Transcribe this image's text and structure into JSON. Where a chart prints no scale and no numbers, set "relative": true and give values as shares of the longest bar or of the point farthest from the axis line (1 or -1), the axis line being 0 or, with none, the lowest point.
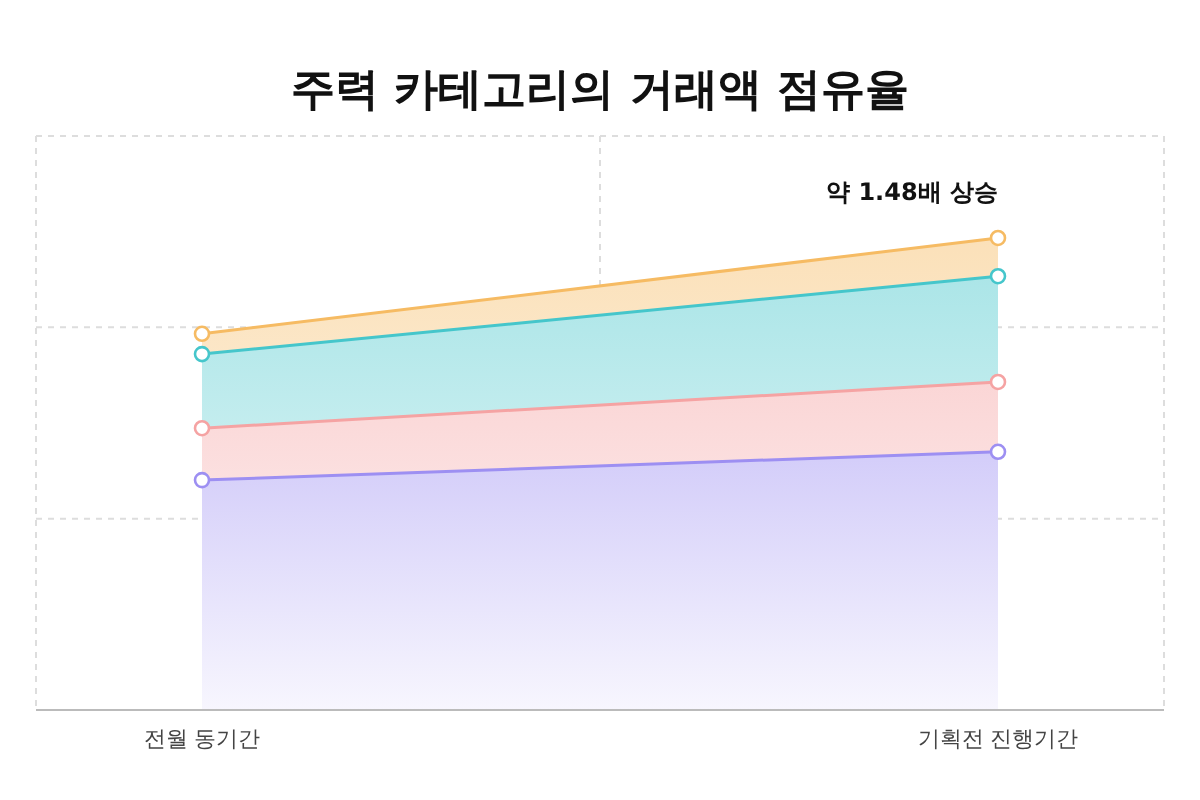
{
  "chart_data": {
    "type": "area",
    "title": "주력 카테고리의 거래액 점유율",
    "categories": [
      "전월 동기간",
      "기획전 진행기간"
    ],
    "relative": true,
    "grid": true,
    "marker": "circle",
    "line_style": "solid",
    "annotations": [
      "약 1.48배 상승"
    ],
    "series": [
      {
        "color": "#9d8ff2",
        "values": [
          0.487,
          0.547
        ]
      },
      {
        "color": "#f5a3a3",
        "values": [
          0.597,
          0.695
        ]
      },
      {
        "color": "#45c6cb",
        "values": [
          0.754,
          0.919
        ]
      },
      {
        "color": "#f6bb63",
        "values": [
          0.797,
          1
        ]
      }
    ]
  }
}
